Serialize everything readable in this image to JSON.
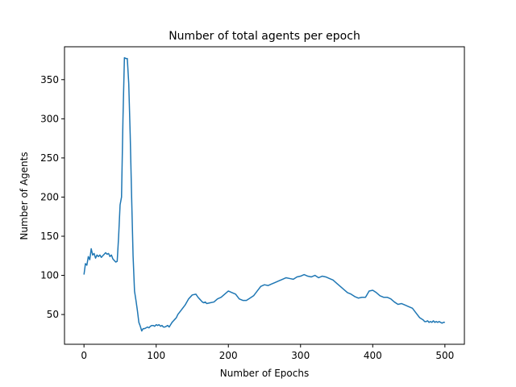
{
  "chart_data": {
    "type": "line",
    "title": "Number of total agents per epoch",
    "xlabel": "Number of Epochs",
    "ylabel": "Number of Agents",
    "xlim": [
      -27,
      527
    ],
    "ylim": [
      12,
      392
    ],
    "xticks": [
      0,
      100,
      200,
      300,
      400,
      500
    ],
    "yticks": [
      50,
      100,
      150,
      200,
      250,
      300,
      350
    ],
    "grid": false,
    "legend": "none",
    "series": [
      {
        "color": "#1f77b4",
        "x": [
          0,
          2,
          4,
          6,
          8,
          10,
          12,
          14,
          16,
          18,
          20,
          22,
          24,
          26,
          28,
          30,
          32,
          34,
          36,
          38,
          40,
          42,
          44,
          46,
          48,
          50,
          52,
          54,
          56,
          58,
          60,
          62,
          64,
          66,
          68,
          70,
          72,
          74,
          76,
          78,
          80,
          82,
          84,
          86,
          88,
          90,
          92,
          94,
          96,
          98,
          100,
          102,
          104,
          106,
          108,
          110,
          112,
          114,
          116,
          118,
          120,
          122,
          124,
          126,
          128,
          130,
          135,
          140,
          145,
          150,
          155,
          158,
          160,
          162,
          164,
          166,
          168,
          170,
          175,
          180,
          185,
          190,
          195,
          200,
          205,
          210,
          215,
          220,
          225,
          230,
          235,
          240,
          245,
          250,
          255,
          260,
          265,
          270,
          275,
          280,
          285,
          290,
          295,
          300,
          305,
          310,
          315,
          320,
          325,
          330,
          335,
          340,
          345,
          350,
          355,
          360,
          365,
          370,
          375,
          380,
          385,
          390,
          395,
          400,
          405,
          410,
          415,
          420,
          425,
          430,
          435,
          440,
          445,
          450,
          455,
          460,
          465,
          470,
          472,
          474,
          476,
          478,
          480,
          482,
          484,
          486,
          488,
          490,
          492,
          494,
          496,
          498,
          500
        ],
        "values": [
          101,
          115,
          113,
          124,
          120,
          134,
          126,
          128,
          122,
          126,
          124,
          126,
          123,
          125,
          127,
          129,
          127,
          128,
          124,
          126,
          121,
          119,
          117,
          118,
          150,
          190,
          200,
          300,
          378,
          377,
          377,
          345,
          280,
          200,
          125,
          80,
          68,
          55,
          40,
          35,
          29,
          32,
          32,
          33,
          34,
          33,
          35,
          36,
          36,
          35,
          37,
          36,
          37,
          35,
          36,
          34,
          34,
          35,
          36,
          34,
          37,
          40,
          42,
          44,
          46,
          50,
          56,
          62,
          70,
          75,
          76,
          72,
          70,
          68,
          66,
          65,
          66,
          64,
          65,
          66,
          70,
          72,
          76,
          80,
          78,
          76,
          70,
          68,
          68,
          71,
          74,
          80,
          86,
          88,
          87,
          89,
          91,
          93,
          95,
          97,
          96,
          95,
          98,
          99,
          101,
          99,
          98,
          100,
          97,
          99,
          98,
          96,
          94,
          90,
          86,
          82,
          78,
          76,
          73,
          71,
          72,
          72,
          80,
          81,
          78,
          74,
          72,
          72,
          70,
          66,
          63,
          64,
          62,
          60,
          58,
          52,
          46,
          43,
          41,
          41,
          42,
          40,
          41,
          40,
          42,
          40,
          41,
          40,
          41,
          40,
          39,
          40,
          40
        ]
      }
    ]
  }
}
